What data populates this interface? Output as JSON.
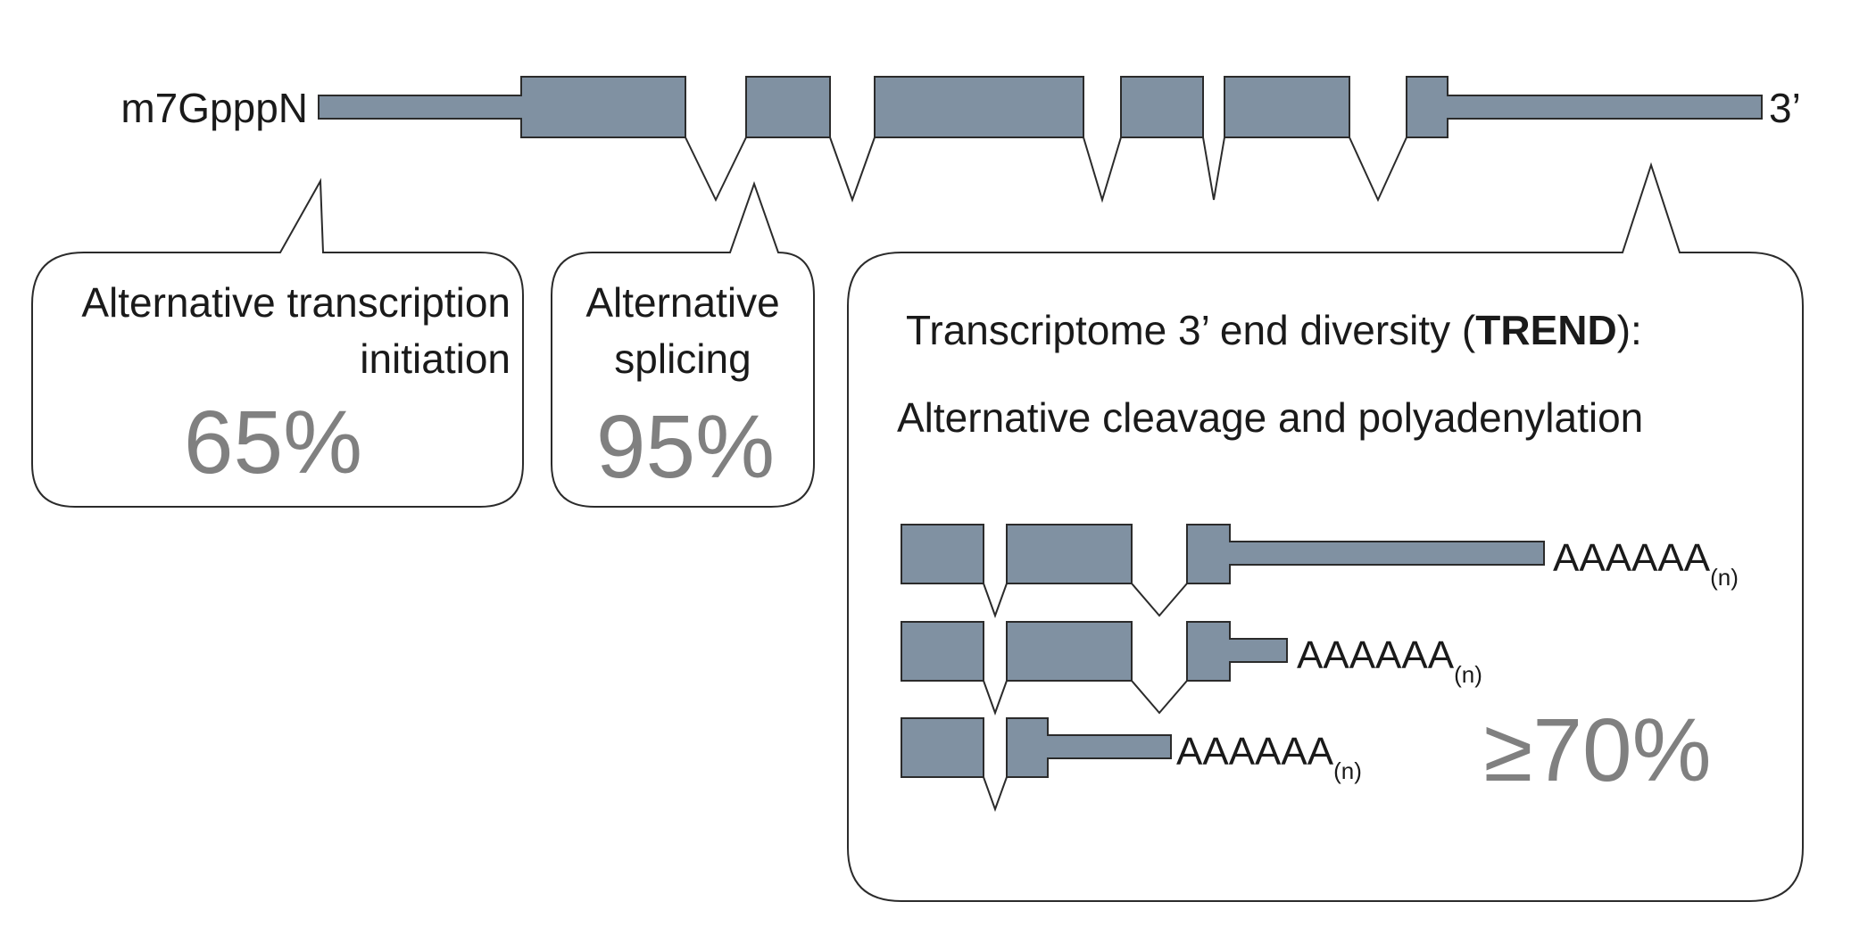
{
  "gene": {
    "cap_label": "m7GpppN",
    "end_label": "3’"
  },
  "callouts": {
    "transcription_initiation": {
      "title_line1": "Alternative transcription",
      "title_line2": "initiation",
      "percent": "65%"
    },
    "splicing": {
      "title_line1": "Alternative",
      "title_line2": "splicing",
      "percent": "95%"
    },
    "trend": {
      "title_prefix": "Transcriptome 3’ end diversity (",
      "title_bold": "TREND",
      "title_suffix": "):",
      "subtitle": "Alternative cleavage and polyadenylation",
      "percent": "≥70%",
      "isoforms": [
        {
          "polya": "AAAAAA",
          "sub": "(n)"
        },
        {
          "polya": "AAAAAA",
          "sub": "(n)"
        },
        {
          "polya": "AAAAAA",
          "sub": "(n)"
        }
      ]
    }
  },
  "colors": {
    "exon_fill": "#8091a2",
    "outline": "#2b2b2b",
    "percent_text": "#808080"
  }
}
